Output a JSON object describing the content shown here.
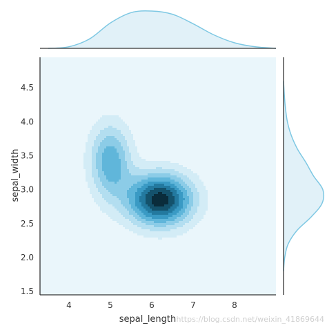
{
  "chart_data": {
    "type": "jointplot-kde",
    "xlabel": "sepal_length",
    "ylabel": "sepal_width",
    "xlim": [
      3.3,
      9.0
    ],
    "ylim": [
      1.45,
      4.95
    ],
    "xticks": [
      4,
      5,
      6,
      7,
      8
    ],
    "yticks": [
      1.5,
      2.0,
      2.5,
      3.0,
      3.5,
      4.0,
      4.5
    ],
    "xtick_labels": [
      "4",
      "5",
      "6",
      "7",
      "8"
    ],
    "ytick_labels": [
      "1.5",
      "2.0",
      "2.5",
      "3.0",
      "3.5",
      "4.0",
      "4.5"
    ],
    "joint_kde": {
      "components": [
        {
          "x_mean": 5.0,
          "y_mean": 3.42,
          "x_sd": 0.35,
          "y_sd": 0.38,
          "weight": 0.33
        },
        {
          "x_mean": 6.2,
          "y_mean": 2.85,
          "x_sd": 0.55,
          "y_sd": 0.27,
          "weight": 0.67
        }
      ],
      "contour_levels": 8
    },
    "marginal_x": {
      "x": [
        3.5,
        4.0,
        4.5,
        5.0,
        5.5,
        6.0,
        6.5,
        7.0,
        7.5,
        8.0,
        8.5,
        9.0
      ],
      "density": [
        0.0,
        0.02,
        0.12,
        0.32,
        0.45,
        0.47,
        0.43,
        0.31,
        0.17,
        0.07,
        0.02,
        0.0
      ]
    },
    "marginal_y": {
      "y": [
        1.8,
        2.0,
        2.2,
        2.4,
        2.6,
        2.8,
        3.0,
        3.2,
        3.4,
        3.6,
        3.8,
        4.0,
        4.2,
        4.4,
        4.6
      ],
      "density": [
        0.0,
        0.03,
        0.12,
        0.35,
        0.72,
        1.0,
        1.02,
        0.78,
        0.58,
        0.36,
        0.2,
        0.1,
        0.05,
        0.02,
        0.0
      ]
    },
    "colors": {
      "background": "#eaf6fb",
      "marginal_fill": "#e1f1f8",
      "marginal_line": "#7ec8e3",
      "contour": [
        "#d3ecf6",
        "#b3def0",
        "#8ccce7",
        "#60b6da",
        "#3a9ac4",
        "#23799f",
        "#14526c",
        "#0a2c3b"
      ]
    }
  },
  "watermark": "https://blog.csdn.net/weixin_41869644"
}
